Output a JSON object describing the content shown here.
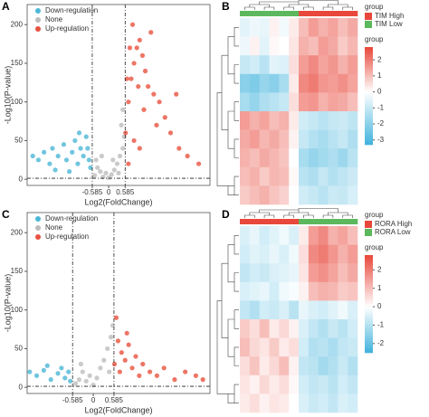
{
  "chart_data": [
    {
      "type": "scatter",
      "label": "A",
      "xlabel": "Log2(FoldChange)",
      "ylabel": "-Log10(P-value)",
      "xlim": [
        -2.9,
        3.6
      ],
      "ylim": [
        -8,
        226
      ],
      "xticks": [
        -0.585,
        0,
        0.585
      ],
      "yticks": [
        0,
        50,
        100,
        150,
        200
      ],
      "vlines": [
        -0.585,
        0.585
      ],
      "hline": 1.3,
      "series": [
        {
          "name": "Down-regulation",
          "color": "#4cb7d6",
          "x": [
            -2.7,
            -2.5,
            -2.3,
            -2.1,
            -2,
            -1.8,
            -1.6,
            -1.5,
            -1.3,
            -1.2,
            -1.1,
            -1,
            -0.9,
            -0.8,
            -0.7,
            -0.65,
            -1.4,
            -1.9,
            -0.75,
            -1.05
          ],
          "values": [
            30,
            25,
            35,
            20,
            40,
            30,
            45,
            25,
            35,
            50,
            20,
            40,
            30,
            55,
            25,
            15,
            10,
            12,
            40,
            60
          ]
        },
        {
          "name": "None",
          "color": "#bdbdbd",
          "x": [
            -0.5,
            -0.4,
            -0.3,
            -0.2,
            -0.1,
            0,
            0.1,
            0.2,
            0.3,
            0.4,
            0.5,
            0.55,
            -0.45,
            0.45,
            0.35,
            -0.25,
            0.15,
            0.5
          ],
          "values": [
            5,
            15,
            10,
            3,
            8,
            2,
            6,
            12,
            20,
            30,
            40,
            55,
            25,
            70,
            8,
            30,
            25,
            90
          ]
        },
        {
          "name": "Up-regulation",
          "color": "#e8523f",
          "x": [
            0.6,
            0.7,
            0.8,
            0.9,
            1,
            1.1,
            1.2,
            1.3,
            1.4,
            1.5,
            1.6,
            1.8,
            2,
            2.2,
            2.5,
            2.8,
            3.2,
            0.65,
            0.75,
            0.85,
            1.05,
            1.25,
            0.9,
            1.7,
            1.1,
            2.4,
            0.7
          ],
          "values": [
            60,
            100,
            130,
            150,
            170,
            180,
            160,
            140,
            120,
            190,
            110,
            100,
            80,
            60,
            40,
            30,
            20,
            130,
            170,
            200,
            120,
            90,
            50,
            70,
            40,
            110,
            20
          ]
        }
      ]
    },
    {
      "type": "heatmap",
      "label": "B",
      "legend_title": "group",
      "groups": [
        {
          "name": "TIM High",
          "color": "#e8483b"
        },
        {
          "name": "TIM Low",
          "color": "#5cb85c"
        }
      ],
      "column_groups": [
        "TIM Low",
        "TIM Low",
        "TIM Low",
        "TIM Low",
        "TIM Low",
        "TIM Low",
        "TIM High",
        "TIM High",
        "TIM High",
        "TIM High",
        "TIM High",
        "TIM High"
      ],
      "colorbar_title": "group",
      "colorbar_ticks": [
        2,
        1,
        0,
        -1,
        -2,
        -3
      ],
      "zlim": [
        -3.3,
        2.8
      ],
      "colors": [
        "#3fb2dc",
        "#ffffff",
        "#e8483b"
      ],
      "matrix": [
        [
          -0.5,
          -0.3,
          -0.4,
          0.2,
          -0.2,
          0.3,
          1,
          1.5,
          1.2,
          1.4,
          1,
          1.3
        ],
        [
          -0.3,
          0.2,
          -0.5,
          0.1,
          0,
          0.4,
          1.2,
          1,
          1.5,
          1.3,
          0.8,
          1.1
        ],
        [
          -1,
          -0.8,
          -1.2,
          -0.5,
          -0.6,
          0.5,
          1.5,
          1.8,
          1.4,
          1.6,
          1.2,
          1.5
        ],
        [
          -2,
          -2.2,
          -1.8,
          -2,
          -1.5,
          0.3,
          1.8,
          2,
          1.6,
          1.5,
          1.7,
          1.4
        ],
        [
          -1.5,
          -1.8,
          -1.4,
          -1.2,
          -1,
          0.5,
          1.5,
          1.6,
          1.2,
          1.4,
          1.3,
          1
        ],
        [
          1.5,
          1.2,
          1.4,
          1,
          1.2,
          0.3,
          -0.8,
          -1,
          -1.2,
          -1,
          -0.9,
          -1.1
        ],
        [
          1.3,
          1.5,
          1.1,
          1.3,
          1,
          0.2,
          -1,
          -1.3,
          -1.5,
          -1.2,
          -1,
          -1.4
        ],
        [
          1.2,
          1,
          1.3,
          1.1,
          0.9,
          0,
          -1.5,
          -1.8,
          -1.6,
          -1.4,
          -1.7,
          -1.2
        ],
        [
          1,
          1.2,
          0.8,
          1.1,
          1,
          0.1,
          -1.2,
          -1.4,
          -1,
          -1.3,
          -1.1,
          -0.9
        ],
        [
          0.8,
          1,
          1.2,
          0.9,
          0.7,
          0,
          -0.8,
          -1,
          -1.2,
          -0.9,
          -1,
          -0.7
        ]
      ]
    },
    {
      "type": "scatter",
      "label": "C",
      "xlabel": "Log2(FoldChange)",
      "ylabel": "-Log10(P-value)",
      "xlim": [
        -1.87,
        3.3
      ],
      "ylim": [
        -8,
        226
      ],
      "xticks": [
        -0.585,
        0,
        0.585
      ],
      "yticks": [
        0,
        50,
        100,
        150,
        200
      ],
      "vlines": [
        -0.585,
        0.585
      ],
      "hline": 1.3,
      "series": [
        {
          "name": "Down-regulation",
          "color": "#4cb7d6",
          "x": [
            -1.8,
            -1.6,
            -1.4,
            -1.2,
            -1,
            -0.9,
            -0.8,
            -0.7,
            -0.65,
            -1.3
          ],
          "values": [
            20,
            15,
            22,
            10,
            18,
            25,
            12,
            20,
            8,
            28
          ]
        },
        {
          "name": "None",
          "color": "#bdbdbd",
          "x": [
            -0.5,
            -0.4,
            -0.3,
            -0.2,
            -0.1,
            0,
            0.1,
            0.2,
            0.3,
            0.4,
            0.5,
            0.55,
            -0.35,
            0.45
          ],
          "values": [
            5,
            10,
            20,
            8,
            15,
            3,
            12,
            25,
            35,
            50,
            65,
            80,
            30,
            20
          ]
        },
        {
          "name": "Up-regulation",
          "color": "#e8523f",
          "x": [
            0.6,
            0.7,
            0.8,
            0.9,
            1,
            1.1,
            1.2,
            1.4,
            1.6,
            1.8,
            2,
            2.3,
            2.6,
            2.9,
            3.1,
            0.65,
            0.75,
            1.3,
            0.95
          ],
          "values": [
            30,
            60,
            45,
            35,
            55,
            25,
            40,
            30,
            20,
            15,
            25,
            10,
            20,
            15,
            10,
            90,
            20,
            15,
            70
          ]
        }
      ]
    },
    {
      "type": "heatmap",
      "label": "D",
      "legend_title": "group",
      "groups": [
        {
          "name": "RORA High",
          "color": "#e8483b"
        },
        {
          "name": "RORA Low",
          "color": "#5cb85c"
        }
      ],
      "column_groups": [
        "RORA High",
        "RORA High",
        "RORA High",
        "RORA High",
        "RORA High",
        "RORA High",
        "RORA Low",
        "RORA Low",
        "RORA Low",
        "RORA Low",
        "RORA Low",
        "RORA Low"
      ],
      "colorbar_title": "group",
      "colorbar_ticks": [
        2,
        1,
        0,
        -1,
        -2
      ],
      "zlim": [
        -2.5,
        2.8
      ],
      "colors": [
        "#3fb2dc",
        "#ffffff",
        "#e8483b"
      ],
      "matrix": [
        [
          -0.5,
          -0.3,
          -0.6,
          -0.4,
          -0.2,
          -0.5,
          0.3,
          1.5,
          1.8,
          1.2,
          1.4,
          1
        ],
        [
          -0.6,
          -0.4,
          -0.5,
          -0.3,
          -0.5,
          -0.2,
          0.5,
          1.8,
          2,
          1.6,
          1.2,
          1.5
        ],
        [
          -0.8,
          -0.6,
          -0.7,
          -0.5,
          -0.4,
          -0.3,
          0.4,
          1.5,
          1.7,
          1.4,
          1,
          1.3
        ],
        [
          -0.5,
          -0.4,
          -0.3,
          -0.6,
          -0.2,
          -0.1,
          0.2,
          1,
          1.2,
          1.1,
          0.8,
          0.9
        ],
        [
          -0.8,
          -1,
          -0.6,
          -0.7,
          -0.5,
          -0.9,
          -0.3,
          -0.5,
          -0.6,
          -0.4,
          -0.2,
          -0.5
        ],
        [
          0.8,
          0.5,
          1,
          0.3,
          0.6,
          0.2,
          -0.5,
          -0.8,
          -1,
          -0.7,
          -0.9,
          -0.6
        ],
        [
          1,
          0.6,
          0.4,
          0.8,
          0.3,
          0.5,
          -0.6,
          -1,
          -0.9,
          -1.1,
          -0.8,
          -0.7
        ],
        [
          0.5,
          0.9,
          0.3,
          0.6,
          1,
          0.2,
          -0.8,
          -0.9,
          -1.2,
          -1,
          -0.7,
          -1
        ],
        [
          0.4,
          0.2,
          0.6,
          0.3,
          0.5,
          0.1,
          -0.6,
          -0.8,
          -0.7,
          -0.9,
          -0.6,
          -0.8
        ],
        [
          0.3,
          0.5,
          0.2,
          0.4,
          0.3,
          0,
          -0.5,
          -0.7,
          -0.6,
          -0.8,
          -0.5,
          -0.6
        ]
      ]
    }
  ]
}
